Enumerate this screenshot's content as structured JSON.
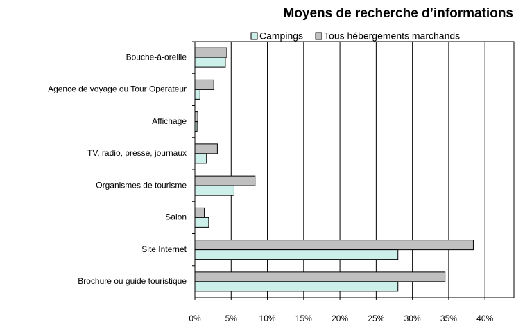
{
  "chart_data": {
    "type": "hbar",
    "title": "Moyens de recherche d’informations",
    "categories": [
      "Bouche-à-oreille",
      "Agence de voyage ou Tour Operateur",
      "Affichage",
      "TV, radio, presse, journaux",
      "Organismes de tourisme",
      "Salon",
      "Site Internet",
      "Brochure ou guide touristique"
    ],
    "series": [
      {
        "name": "Campings",
        "color": "#ccefea",
        "values": [
          4.2,
          0.7,
          0.3,
          1.6,
          5.4,
          1.9,
          28,
          28
        ]
      },
      {
        "name": "Tous hébergements marchands",
        "color": "#c0c0c0",
        "values": [
          4.4,
          2.6,
          0.4,
          3.1,
          8.3,
          1.3,
          38.4,
          34.5
        ]
      }
    ],
    "xlim": [
      0,
      44
    ],
    "xticks": [
      {
        "value": 0,
        "label": "0%"
      },
      {
        "value": 5,
        "label": "5%"
      },
      {
        "value": 10,
        "label": "10%"
      },
      {
        "value": 15,
        "label": "15%"
      },
      {
        "value": 20,
        "label": "20%"
      },
      {
        "value": 25,
        "label": "25%"
      },
      {
        "value": 30,
        "label": "30%"
      },
      {
        "value": 35,
        "label": "35%"
      },
      {
        "value": 40,
        "label": "40%"
      }
    ],
    "grid": true
  }
}
